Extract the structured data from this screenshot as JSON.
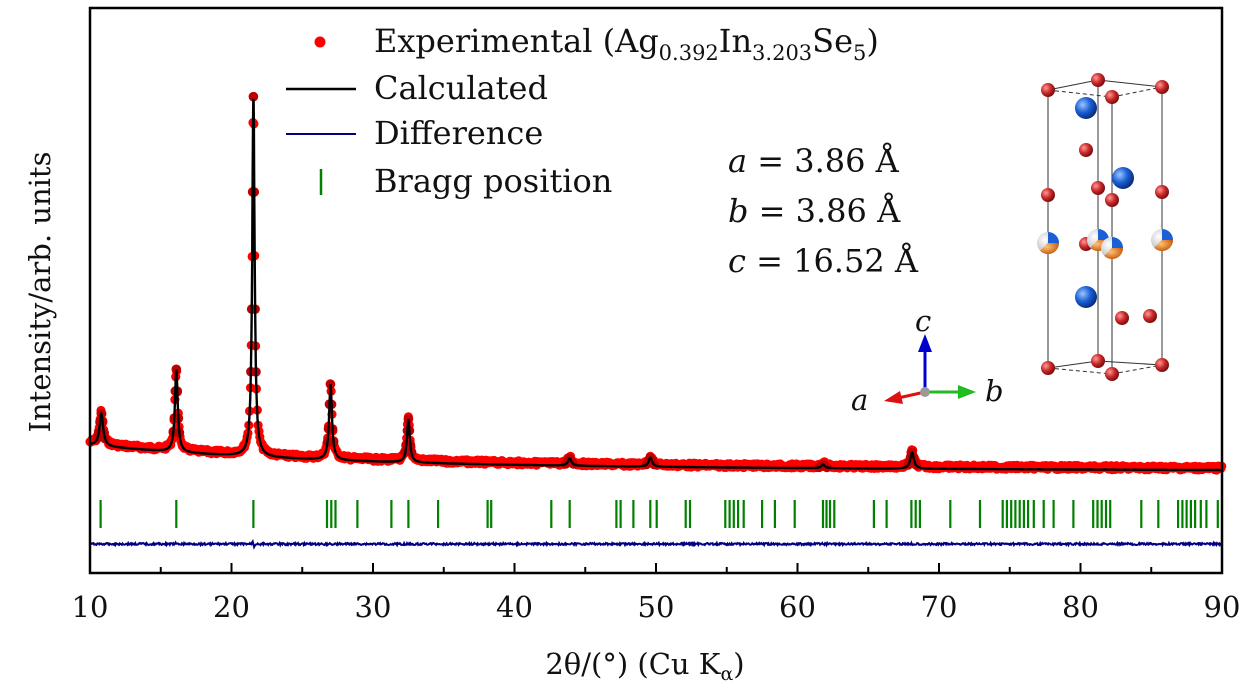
{
  "chart_data": {
    "type": "scatter",
    "xlabel": "2θ/(°) (Cu K",
    "xlabel_sub": "α",
    "xlabel_close": ")",
    "ylabel": "Intensity/arb. units",
    "xlim": [
      10,
      90
    ],
    "x_ticks": [
      10,
      20,
      30,
      40,
      50,
      60,
      70,
      80,
      90
    ],
    "legend_placement": "top-left",
    "colors": {
      "experimental": "#ff0000",
      "calculated": "#000000",
      "difference": "#000080",
      "bragg": "#008000"
    },
    "legend": {
      "experimental": {
        "prefix": "Experimental (Ag",
        "sub1": "0.392",
        "mid1": "In",
        "sub2": "3.203",
        "mid2": "Se",
        "sub3": "5",
        "suffix": ")"
      },
      "calculated": "Calculated",
      "difference": "Difference",
      "bragg": "Bragg position"
    },
    "peaks": [
      {
        "x": 10.8,
        "h": 0.09,
        "w": 0.15
      },
      {
        "x": 16.1,
        "h": 0.23,
        "w": 0.12
      },
      {
        "x": 21.55,
        "h": 1.0,
        "w": 0.1
      },
      {
        "x": 27.0,
        "h": 0.21,
        "w": 0.12
      },
      {
        "x": 32.5,
        "h": 0.12,
        "w": 0.12
      },
      {
        "x": 43.9,
        "h": 0.02,
        "w": 0.15
      },
      {
        "x": 49.6,
        "h": 0.025,
        "w": 0.15
      },
      {
        "x": 61.8,
        "h": 0.01,
        "w": 0.15
      },
      {
        "x": 68.1,
        "h": 0.045,
        "w": 0.15
      }
    ],
    "bragg_positions": [
      10.75,
      16.1,
      21.55,
      26.75,
      27.05,
      27.35,
      28.9,
      31.3,
      32.5,
      34.6,
      38.1,
      38.35,
      42.6,
      43.9,
      47.2,
      47.5,
      48.4,
      49.6,
      50.05,
      52.1,
      52.4,
      54.9,
      55.2,
      55.5,
      55.8,
      56.2,
      57.5,
      58.4,
      59.8,
      61.8,
      62.05,
      62.3,
      62.6,
      65.4,
      66.3,
      68.05,
      68.35,
      68.65,
      70.8,
      72.9,
      74.5,
      74.8,
      75.1,
      75.4,
      75.7,
      76.0,
      76.3,
      76.7,
      77.4,
      78.1,
      79.5,
      80.9,
      81.2,
      81.5,
      81.8,
      82.1,
      84.3,
      85.5,
      86.9,
      87.2,
      87.5,
      87.8,
      88.1,
      88.5,
      88.9,
      89.7
    ],
    "lattice": {
      "a": {
        "symbol": "a",
        "value": " = 3.86 Å"
      },
      "b": {
        "symbol": "b",
        "value": " = 3.86 Å"
      },
      "c": {
        "symbol": "c",
        "value": " = 16.52 Å"
      }
    },
    "crystal_axes": {
      "a": "a",
      "b": "b",
      "c": "c"
    }
  }
}
